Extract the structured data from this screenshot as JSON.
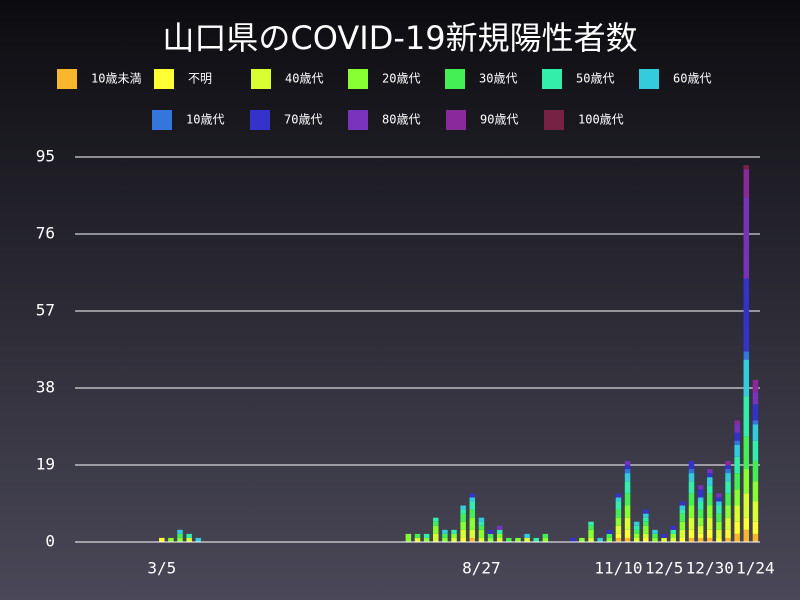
{
  "chart_data": {
    "type": "stacked_bar",
    "title": "山口県のCOVID-19新規陽性者数",
    "categories": [
      null,
      null,
      null,
      null,
      null,
      null,
      null,
      null,
      null,
      "3/5",
      null,
      null,
      null,
      null,
      null,
      null,
      null,
      null,
      null,
      null,
      null,
      null,
      null,
      null,
      null,
      null,
      null,
      null,
      null,
      null,
      null,
      null,
      null,
      null,
      null,
      null,
      null,
      null,
      null,
      null,
      null,
      null,
      null,
      null,
      "8/27",
      null,
      null,
      null,
      null,
      null,
      null,
      null,
      null,
      null,
      null,
      null,
      null,
      null,
      null,
      "11/10",
      null,
      null,
      null,
      null,
      "12/5",
      null,
      null,
      null,
      null,
      "12/30",
      null,
      null,
      null,
      null,
      "1/24"
    ],
    "series": [
      {
        "name": "10歳未満",
        "color": "#f9b52c",
        "values": [
          0,
          0,
          0,
          0,
          0,
          0,
          0,
          0,
          0,
          0,
          0,
          0,
          0,
          0,
          0,
          0,
          0,
          0,
          0,
          0,
          0,
          0,
          0,
          0,
          0,
          0,
          0,
          0,
          0,
          0,
          0,
          0,
          0,
          0,
          0,
          0,
          0,
          0,
          0,
          0,
          0,
          0,
          0,
          1,
          0,
          0,
          0,
          0,
          0,
          0,
          0,
          0,
          0,
          0,
          0,
          0,
          0,
          0,
          0,
          1,
          1,
          0,
          0,
          0,
          0,
          0,
          0,
          1,
          1,
          1,
          0,
          1,
          2,
          3,
          2
        ]
      },
      {
        "name": "不明",
        "color": "#ffff33",
        "values": [
          0,
          0,
          0,
          0,
          0,
          0,
          0,
          0,
          0,
          1,
          0,
          0,
          0,
          0,
          0,
          0,
          0,
          0,
          0,
          0,
          0,
          0,
          0,
          0,
          0,
          0,
          0,
          0,
          0,
          0,
          0,
          0,
          0,
          0,
          0,
          0,
          0,
          0,
          0,
          0,
          0,
          0,
          1,
          0,
          0,
          0,
          0,
          0,
          0,
          0,
          0,
          0,
          0,
          0,
          0,
          0,
          0,
          0,
          0,
          1,
          2,
          0,
          1,
          0,
          0,
          0,
          1,
          2,
          1,
          2,
          1,
          2,
          3,
          3,
          3
        ]
      },
      {
        "name": "40歳代",
        "color": "#d9ff33",
        "values": [
          0,
          0,
          0,
          0,
          0,
          0,
          0,
          0,
          0,
          0,
          0,
          0,
          1,
          0,
          0,
          0,
          0,
          0,
          0,
          0,
          0,
          0,
          0,
          0,
          0,
          0,
          0,
          0,
          0,
          0,
          0,
          0,
          0,
          0,
          0,
          0,
          0,
          1,
          0,
          2,
          0,
          1,
          2,
          2,
          1,
          0,
          1,
          0,
          0,
          1,
          0,
          0,
          0,
          0,
          0,
          0,
          1,
          0,
          0,
          2,
          3,
          1,
          1,
          0,
          1,
          1,
          2,
          3,
          2,
          3,
          2,
          3,
          4,
          6,
          5
        ]
      },
      {
        "name": "20歳代",
        "color": "#88ff33",
        "values": [
          0,
          0,
          0,
          0,
          0,
          0,
          0,
          0,
          0,
          0,
          1,
          1,
          0,
          0,
          0,
          0,
          0,
          0,
          0,
          0,
          0,
          0,
          0,
          0,
          0,
          0,
          0,
          0,
          0,
          0,
          0,
          0,
          0,
          0,
          0,
          0,
          2,
          0,
          1,
          2,
          1,
          1,
          2,
          3,
          2,
          1,
          1,
          0,
          1,
          0,
          0,
          1,
          0,
          0,
          0,
          1,
          2,
          0,
          1,
          2,
          3,
          1,
          2,
          1,
          0,
          1,
          2,
          3,
          2,
          3,
          2,
          3,
          4,
          6,
          5
        ]
      },
      {
        "name": "30歳代",
        "color": "#44ee55",
        "values": [
          0,
          0,
          0,
          0,
          0,
          0,
          0,
          0,
          0,
          0,
          0,
          1,
          0,
          0,
          0,
          0,
          0,
          0,
          0,
          0,
          0,
          0,
          0,
          0,
          0,
          0,
          0,
          0,
          0,
          0,
          0,
          0,
          0,
          0,
          0,
          0,
          0,
          1,
          0,
          1,
          1,
          0,
          2,
          2,
          1,
          1,
          0,
          1,
          0,
          0,
          0,
          1,
          0,
          0,
          0,
          0,
          1,
          0,
          1,
          2,
          3,
          1,
          1,
          1,
          0,
          0,
          2,
          3,
          2,
          3,
          2,
          3,
          4,
          8,
          5
        ]
      },
      {
        "name": "50歳代",
        "color": "#33eeaa",
        "values": [
          0,
          0,
          0,
          0,
          0,
          0,
          0,
          0,
          0,
          0,
          0,
          0,
          1,
          0,
          0,
          0,
          0,
          0,
          0,
          0,
          0,
          0,
          0,
          0,
          0,
          0,
          0,
          0,
          0,
          0,
          0,
          0,
          0,
          0,
          0,
          0,
          0,
          0,
          1,
          1,
          0,
          1,
          1,
          2,
          1,
          0,
          1,
          0,
          0,
          0,
          1,
          0,
          0,
          0,
          0,
          0,
          1,
          0,
          0,
          2,
          3,
          1,
          1,
          0,
          0,
          1,
          1,
          3,
          2,
          2,
          2,
          3,
          4,
          10,
          5
        ]
      },
      {
        "name": "60歳代",
        "color": "#33ccdd",
        "values": [
          0,
          0,
          0,
          0,
          0,
          0,
          0,
          0,
          0,
          0,
          0,
          1,
          0,
          1,
          0,
          0,
          0,
          0,
          0,
          0,
          0,
          0,
          0,
          0,
          0,
          0,
          0,
          0,
          0,
          0,
          0,
          0,
          0,
          0,
          0,
          0,
          0,
          0,
          0,
          0,
          1,
          0,
          1,
          1,
          1,
          0,
          0,
          0,
          0,
          1,
          0,
          0,
          0,
          0,
          0,
          0,
          0,
          1,
          0,
          1,
          2,
          1,
          1,
          1,
          0,
          0,
          1,
          2,
          1,
          2,
          1,
          2,
          3,
          9,
          4
        ]
      },
      {
        "name": "10歳代",
        "color": "#3377dd",
        "values": [
          0,
          0,
          0,
          0,
          0,
          0,
          0,
          0,
          0,
          0,
          0,
          0,
          0,
          0,
          0,
          0,
          0,
          0,
          0,
          0,
          0,
          0,
          0,
          0,
          0,
          0,
          0,
          0,
          0,
          0,
          0,
          0,
          0,
          0,
          0,
          0,
          0,
          0,
          0,
          0,
          0,
          0,
          0,
          0,
          0,
          0,
          0,
          0,
          0,
          0,
          0,
          0,
          0,
          0,
          0,
          0,
          0,
          0,
          0,
          0,
          1,
          0,
          0,
          0,
          0,
          0,
          0,
          1,
          0,
          0,
          0,
          1,
          1,
          2,
          1
        ]
      },
      {
        "name": "70歳代",
        "color": "#3333cc",
        "values": [
          0,
          0,
          0,
          0,
          0,
          0,
          0,
          0,
          0,
          0,
          0,
          0,
          0,
          0,
          0,
          0,
          0,
          0,
          0,
          0,
          0,
          0,
          0,
          0,
          0,
          0,
          0,
          0,
          0,
          0,
          0,
          0,
          0,
          0,
          0,
          0,
          0,
          0,
          0,
          0,
          0,
          0,
          0,
          1,
          0,
          1,
          0,
          0,
          0,
          0,
          0,
          0,
          0,
          0,
          1,
          0,
          0,
          0,
          1,
          1,
          1,
          0,
          1,
          0,
          1,
          1,
          1,
          2,
          2,
          1,
          1,
          1,
          2,
          18,
          4
        ]
      },
      {
        "name": "80歳代",
        "color": "#7733bb",
        "values": [
          0,
          0,
          0,
          0,
          0,
          0,
          0,
          0,
          0,
          0,
          0,
          0,
          0,
          0,
          0,
          0,
          0,
          0,
          0,
          0,
          0,
          0,
          0,
          0,
          0,
          0,
          0,
          0,
          0,
          0,
          0,
          0,
          0,
          0,
          0,
          0,
          0,
          0,
          0,
          0,
          0,
          0,
          0,
          0,
          0,
          0,
          1,
          0,
          0,
          0,
          0,
          0,
          0,
          0,
          0,
          0,
          0,
          0,
          0,
          0,
          1,
          0,
          0,
          0,
          0,
          0,
          0,
          0,
          1,
          1,
          1,
          0,
          2,
          20,
          3
        ]
      },
      {
        "name": "90歳代",
        "color": "#8a2a9a",
        "values": [
          0,
          0,
          0,
          0,
          0,
          0,
          0,
          0,
          0,
          0,
          0,
          0,
          0,
          0,
          0,
          0,
          0,
          0,
          0,
          0,
          0,
          0,
          0,
          0,
          0,
          0,
          0,
          0,
          0,
          0,
          0,
          0,
          0,
          0,
          0,
          0,
          0,
          0,
          0,
          0,
          0,
          0,
          0,
          0,
          0,
          0,
          0,
          0,
          0,
          0,
          0,
          0,
          0,
          0,
          0,
          0,
          0,
          0,
          0,
          0,
          0,
          0,
          0,
          0,
          0,
          0,
          0,
          0,
          0,
          0,
          0,
          1,
          1,
          7,
          3
        ]
      },
      {
        "name": "100歳代",
        "color": "#772244",
        "values": [
          0,
          0,
          0,
          0,
          0,
          0,
          0,
          0,
          0,
          0,
          0,
          0,
          0,
          0,
          0,
          0,
          0,
          0,
          0,
          0,
          0,
          0,
          0,
          0,
          0,
          0,
          0,
          0,
          0,
          0,
          0,
          0,
          0,
          0,
          0,
          0,
          0,
          0,
          0,
          0,
          0,
          0,
          0,
          0,
          0,
          0,
          0,
          0,
          0,
          0,
          0,
          0,
          0,
          0,
          0,
          0,
          0,
          0,
          0,
          0,
          0,
          0,
          0,
          0,
          0,
          0,
          0,
          0,
          0,
          0,
          0,
          0,
          0,
          1,
          0
        ]
      }
    ],
    "ylim": [
      0,
      95
    ],
    "yticks": [
      0,
      19,
      38,
      57,
      76,
      95
    ],
    "grid": true
  }
}
